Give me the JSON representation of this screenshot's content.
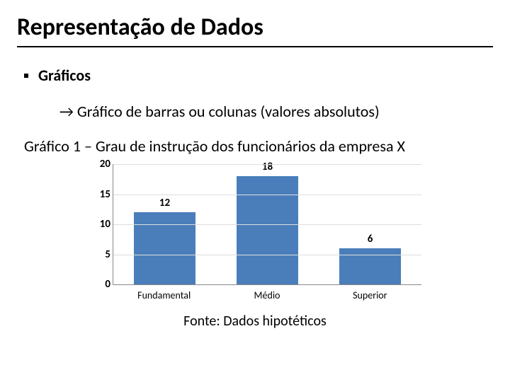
{
  "title": {
    "text": "Representação de Dados",
    "fontsize": 34
  },
  "bullet": {
    "text": "Gráficos",
    "fontsize": 22
  },
  "arrow_line": {
    "arrow": "→",
    "text": "Gráfico de barras ou colunas (valores absolutos)",
    "fontsize": 22
  },
  "caption": {
    "text": "Gráfico 1 – Grau de instrução dos funcionários da empresa X",
    "fontsize": 22
  },
  "source": {
    "text": "Fonte: Dados hipotéticos",
    "fontsize": 20
  },
  "chart": {
    "type": "bar",
    "categories": [
      "Fundamental",
      "Médio",
      "Superior"
    ],
    "values": [
      12,
      18,
      6
    ],
    "bar_colors": [
      "#4a7ebb",
      "#4a7ebb",
      "#4a7ebb"
    ],
    "value_label_fontsize": 15,
    "category_label_fontsize": 14,
    "y_tick_label_fontsize": 15,
    "ylim": [
      0,
      20
    ],
    "ytick_step": 5,
    "background_color": "#ffffff",
    "grid_color": "#dddddd",
    "axis_color": "#888888",
    "bar_width": 0.6
  }
}
